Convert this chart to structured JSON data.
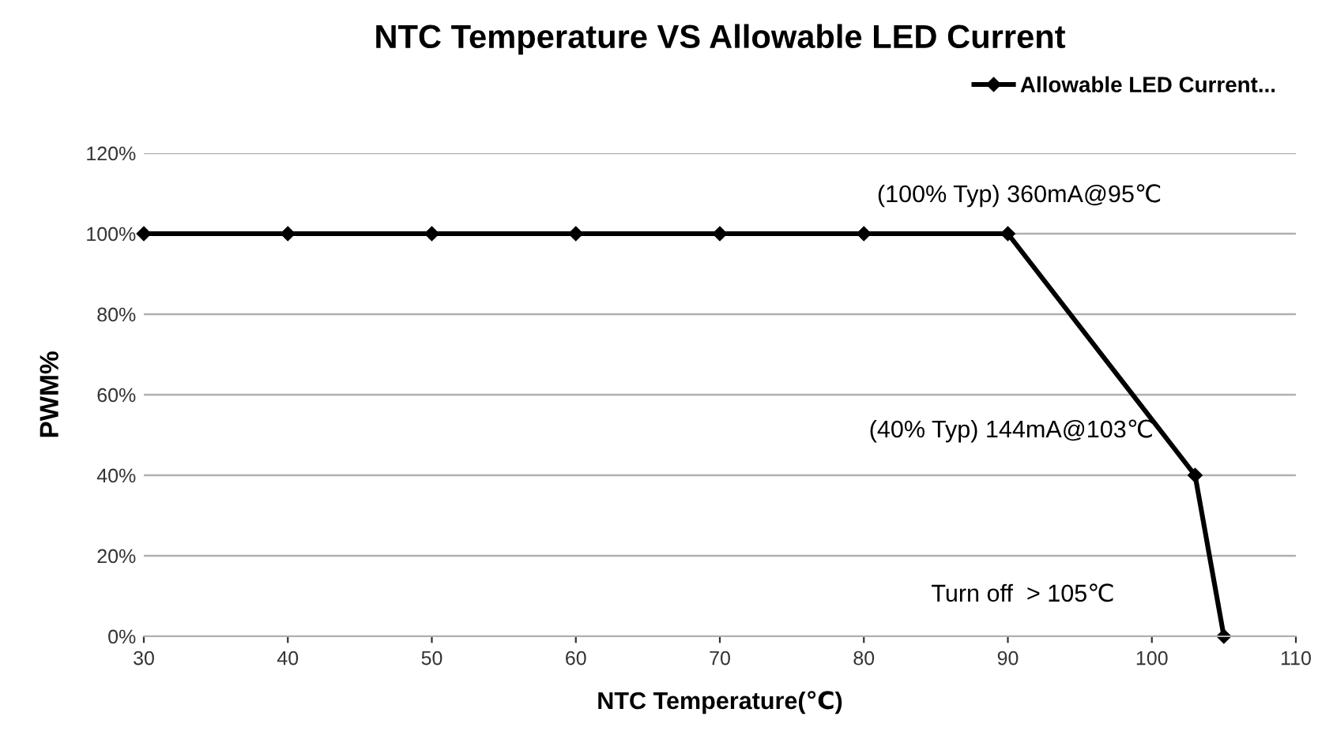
{
  "chart_data": {
    "type": "line",
    "title": "NTC Temperature VS Allowable LED Current",
    "xlabel": "NTC Temperature(℃)",
    "ylabel": "PWM%",
    "series": [
      {
        "name": "Allowable LED Current...",
        "color": "#000000",
        "x": [
          30,
          40,
          50,
          60,
          70,
          80,
          90,
          103,
          105
        ],
        "values": [
          100,
          100,
          100,
          100,
          100,
          100,
          100,
          40,
          0
        ]
      }
    ],
    "xlim": [
      30,
      110
    ],
    "xticks": [
      30,
      40,
      50,
      60,
      70,
      80,
      90,
      100,
      110
    ],
    "ylim": [
      0,
      120
    ],
    "yticks": [
      {
        "value": 0,
        "label": "0%"
      },
      {
        "value": 20,
        "label": "20%"
      },
      {
        "value": 40,
        "label": "40%"
      },
      {
        "value": 60,
        "label": "60%"
      },
      {
        "value": 80,
        "label": "80%"
      },
      {
        "value": 100,
        "label": "100%"
      },
      {
        "value": 120,
        "label": "120%"
      }
    ],
    "annotations": [
      "(100% Typ) 360mA@95℃",
      "(40% Typ) 144mA@103℃",
      "Turn off  > 105℃"
    ],
    "grid": "y",
    "legend": "top right",
    "marker": "diamond",
    "line_style": "solid"
  }
}
